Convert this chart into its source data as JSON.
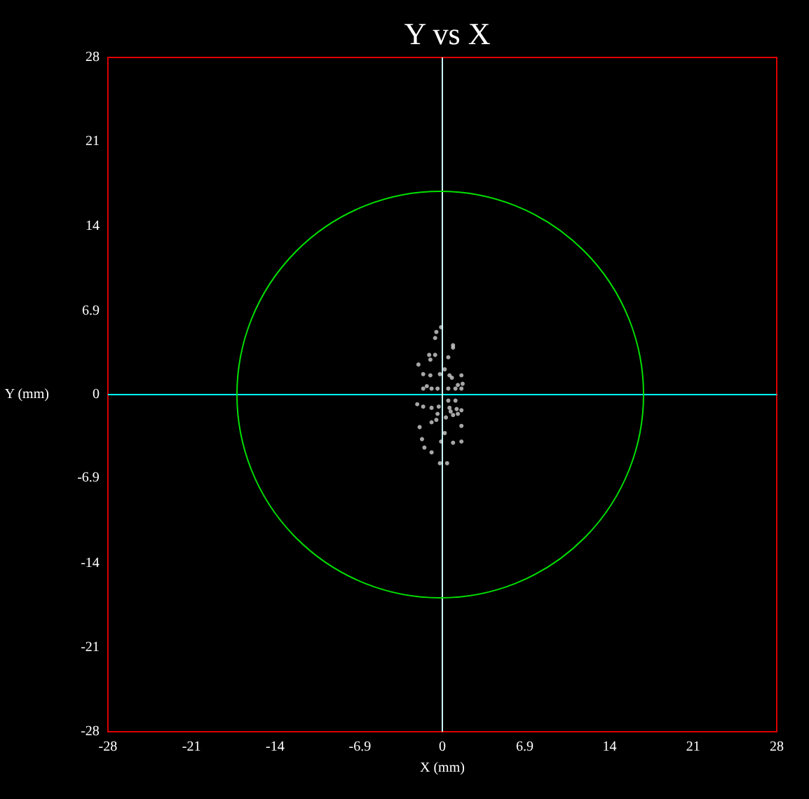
{
  "chart_data": {
    "type": "scatter",
    "title": "Y vs X",
    "xlabel": "X (mm)",
    "ylabel": "Y (mm)",
    "xlim": [
      -28,
      28
    ],
    "ylim": [
      -28,
      28
    ],
    "xticks": [
      -28,
      -21,
      -14,
      -6.9,
      0,
      6.9,
      14,
      21,
      28
    ],
    "yticks": [
      -28,
      -21,
      -14,
      -6.9,
      0,
      6.9,
      14,
      21,
      28
    ],
    "grid": false,
    "ref_lines": [
      {
        "axis": "y",
        "value": 0,
        "color": "#00ffff"
      },
      {
        "axis": "x",
        "value": 0,
        "color": "#ccffff"
      }
    ],
    "series": [
      {
        "color": "#d0d0d0",
        "marker": "circle",
        "x": [
          -0.1,
          -0.5,
          -0.6,
          0.9,
          0.9,
          -2,
          -1.1,
          -0.6,
          -1,
          0.5,
          0.2,
          -1.6,
          -1,
          -0.2,
          0.6,
          0.8,
          1.6,
          1.7,
          1.3,
          -1.3,
          -1.6,
          -0.9,
          -0.4,
          0.5,
          1.1,
          1.6,
          0.5,
          1.1,
          -2.1,
          -1.6,
          -0.9,
          -0.3,
          0.6,
          1.2,
          0.7,
          1.6,
          -0.4,
          0.3,
          0.9,
          1.3,
          -0.9,
          -0.5,
          -1.9,
          1.6,
          0.2,
          -1.7,
          -0.1,
          1.6,
          0.9,
          -1.5,
          -0.9,
          -0.2,
          0.4
        ],
        "values": [
          5.6,
          5.2,
          4.7,
          4.1,
          3.9,
          2.5,
          3.3,
          3.3,
          2.9,
          3.1,
          2.1,
          1.7,
          1.6,
          1.7,
          1.6,
          1.4,
          1.6,
          0.9,
          0.8,
          0.7,
          0.5,
          0.5,
          0.5,
          0.5,
          0.5,
          0.5,
          -0.5,
          -0.5,
          -0.8,
          -1,
          -1.1,
          -1,
          -1.1,
          -1.2,
          -1.4,
          -1.3,
          -1.6,
          -1.9,
          -1.7,
          -1.6,
          -2.3,
          -2.1,
          -2.7,
          -2.6,
          -3.2,
          -3.7,
          -3.9,
          -3.9,
          -4,
          -4.4,
          -4.8,
          -5.7,
          -5.7
        ]
      }
    ]
  }
}
